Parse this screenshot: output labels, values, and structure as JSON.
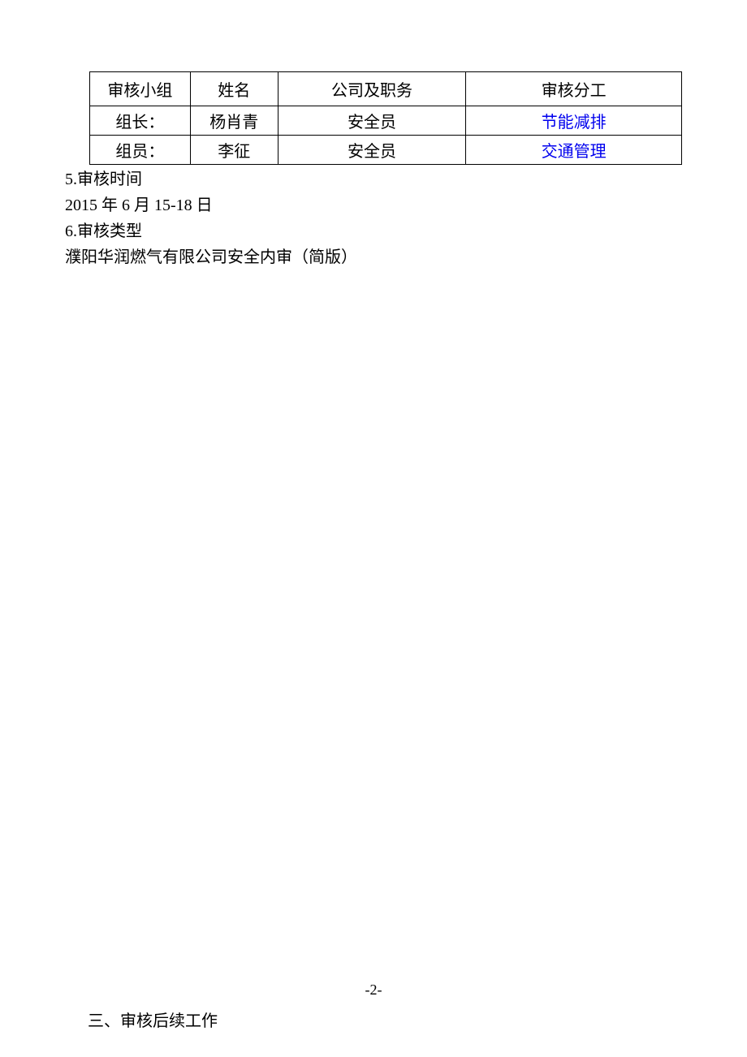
{
  "table": {
    "headers": {
      "group": "审核小组",
      "name": "姓名",
      "position": "公司及职务",
      "division": "审核分工"
    },
    "rows": [
      {
        "group": "组长：",
        "name": "杨肖青",
        "position": "安全员",
        "division": "节能减排"
      },
      {
        "group": "组员：",
        "name": "李征",
        "position": "安全员",
        "division": "交通管理"
      }
    ],
    "border_color": "#000000",
    "link_color": "#0000ee",
    "font_size": 20
  },
  "body": {
    "line1": "5.审核时间",
    "line2": "2015 年 6 月 15-18 日",
    "line3": "6.审核类型",
    "line4": "濮阳华润燃气有限公司安全内审（简版）"
  },
  "page_number": "-2-",
  "footer_heading": "三、审核后续工作"
}
